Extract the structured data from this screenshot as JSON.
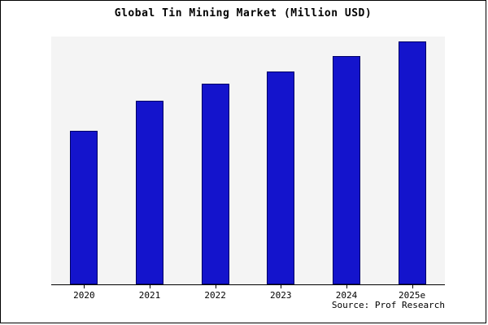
{
  "chart_data": {
    "type": "bar",
    "title": "Global Tin Mining Market (Million USD)",
    "categories": [
      "2020",
      "2021",
      "2022",
      "2023",
      "2024",
      "2025e"
    ],
    "values": [
      62,
      74,
      81,
      86,
      92,
      98
    ],
    "ylim": [
      0,
      100
    ],
    "xlabel": "",
    "ylabel": "",
    "grid": false,
    "legend": "none",
    "bar_color": "#1414cc",
    "bar_border_color": "#000066",
    "plot_background": "#f4f4f4",
    "source": "Source: Prof Research"
  }
}
